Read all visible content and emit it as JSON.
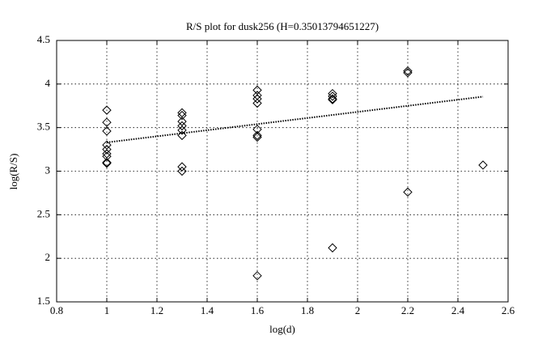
{
  "chart_data": {
    "type": "scatter",
    "title": "R/S plot for dusk256 (H=0.35013794651227)",
    "xlabel": "log(d)",
    "ylabel": "log(R/S)",
    "xlim": [
      0.8,
      2.6
    ],
    "xticks": [
      0.8,
      1,
      1.2,
      1.4,
      1.6,
      1.8,
      2,
      2.2,
      2.4,
      2.6
    ],
    "ylim": [
      1.5,
      4.5
    ],
    "yticks": [
      1.5,
      2,
      2.5,
      3,
      3.5,
      4,
      4.5
    ],
    "grid": true,
    "series": [
      {
        "mode": "markers",
        "marker": "diamond",
        "color": "#000000",
        "x": [
          1,
          1,
          1,
          1,
          1,
          1,
          1,
          1,
          1,
          1.3,
          1.3,
          1.3,
          1.3,
          1.3,
          1.3,
          1.3,
          1.3,
          1.6,
          1.6,
          1.6,
          1.6,
          1.6,
          1.6,
          1.6,
          1.6,
          1.9,
          1.9,
          1.9,
          1.9,
          1.9,
          2.2,
          2.2,
          2.2,
          2.5
        ],
        "values": [
          3.7,
          3.56,
          3.46,
          3.3,
          3.25,
          3.2,
          3.17,
          3.1,
          3.09,
          3.67,
          3.64,
          3.57,
          3.52,
          3.47,
          3.41,
          3.05,
          3.0,
          3.93,
          3.87,
          3.83,
          3.78,
          3.48,
          3.41,
          3.39,
          1.8,
          3.89,
          3.86,
          3.83,
          3.82,
          2.12,
          4.15,
          4.13,
          2.76,
          3.07
        ]
      },
      {
        "mode": "line",
        "line_style": "dotted",
        "color": "#000000",
        "x": [
          1,
          2.5
        ],
        "values": [
          3.33,
          3.855
        ]
      }
    ]
  }
}
